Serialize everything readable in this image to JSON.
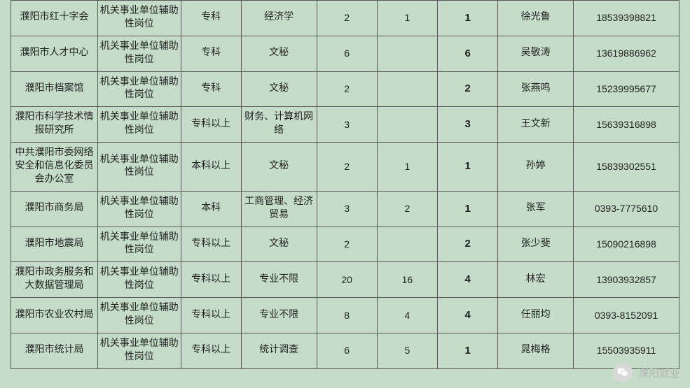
{
  "table": {
    "type": "table",
    "border_color": "#5a5a5a",
    "background_color": "#c5ddc8",
    "text_color": "#222222",
    "font_size": 14,
    "bold_col_font_size": 15,
    "columns": [
      {
        "key": "org",
        "width_pct": 11.5,
        "align": "center"
      },
      {
        "key": "post",
        "width_pct": 11,
        "align": "center"
      },
      {
        "key": "edu",
        "width_pct": 8,
        "align": "center"
      },
      {
        "key": "major",
        "width_pct": 10,
        "align": "center"
      },
      {
        "key": "n1",
        "width_pct": 8,
        "align": "center"
      },
      {
        "key": "n2",
        "width_pct": 8,
        "align": "center"
      },
      {
        "key": "bold",
        "width_pct": 8,
        "align": "center",
        "bold": true
      },
      {
        "key": "contact",
        "width_pct": 10,
        "align": "center"
      },
      {
        "key": "phone",
        "width_pct": 14,
        "align": "center"
      }
    ],
    "rows": [
      {
        "org": "濮阳市红十字会",
        "post": "机关事业单位辅助性岗位",
        "edu": "专科",
        "major": "经济学",
        "n1": "2",
        "n2": "1",
        "bold": "1",
        "contact": "徐光鲁",
        "phone": "18539398821"
      },
      {
        "org": "濮阳市人才中心",
        "post": "机关事业单位辅助性岗位",
        "edu": "专科",
        "major": "文秘",
        "n1": "6",
        "n2": "",
        "bold": "6",
        "contact": "吴敬涛",
        "phone": "13619886962"
      },
      {
        "org": "濮阳市档案馆",
        "post": "机关事业单位辅助性岗位",
        "edu": "专科",
        "major": "文秘",
        "n1": "2",
        "n2": "",
        "bold": "2",
        "contact": "张燕鸣",
        "phone": "15239995677"
      },
      {
        "org": "濮阳市科学技术情报研究所",
        "post": "机关事业单位辅助性岗位",
        "edu": "专科以上",
        "major": "财务、计算机网络",
        "n1": "3",
        "n2": "",
        "bold": "3",
        "contact": "王文新",
        "phone": "15639316898"
      },
      {
        "org": "中共濮阳市委网络安全和信息化委员会办公室",
        "post": "机关事业单位辅助性岗位",
        "edu": "本科以上",
        "major": "文秘",
        "n1": "2",
        "n2": "1",
        "bold": "1",
        "contact": "孙婷",
        "phone": "15839302551"
      },
      {
        "org": "濮阳市商务局",
        "post": "机关事业单位辅助性岗位",
        "edu": "本科",
        "major": "工商管理、经济贸易",
        "n1": "3",
        "n2": "2",
        "bold": "1",
        "contact": "张军",
        "phone": "0393-7775610"
      },
      {
        "org": "濮阳市地震局",
        "post": "机关事业单位辅助性岗位",
        "edu": "专科以上",
        "major": "文秘",
        "n1": "2",
        "n2": "",
        "bold": "2",
        "contact": "张少斐",
        "phone": "15090216898"
      },
      {
        "org": "濮阳市政务服务和大数据管理局",
        "post": "机关事业单位辅助性岗位",
        "edu": "专科以上",
        "major": "专业不限",
        "n1": "20",
        "n2": "16",
        "bold": "4",
        "contact": "林宏",
        "phone": "13903932857"
      },
      {
        "org": "濮阳市农业农村局",
        "post": "机关事业单位辅助性岗位",
        "edu": "专科以上",
        "major": "专业不限",
        "n1": "8",
        "n2": "4",
        "bold": "4",
        "contact": "任丽均",
        "phone": "0393-8152091"
      },
      {
        "org": "濮阳市统计局",
        "post": "机关事业单位辅助性岗位",
        "edu": "专科以上",
        "major": "统计调查",
        "n1": "6",
        "n2": "5",
        "bold": "1",
        "contact": "晁梅格",
        "phone": "15503935911"
      }
    ]
  },
  "watermark": {
    "icon": "wechat-icon",
    "text": "濮阳就业",
    "text_color": "#b5b5b5",
    "logo_bg": "#d9d9d9",
    "logo_fg": "#ffffff",
    "font_size": 15
  }
}
